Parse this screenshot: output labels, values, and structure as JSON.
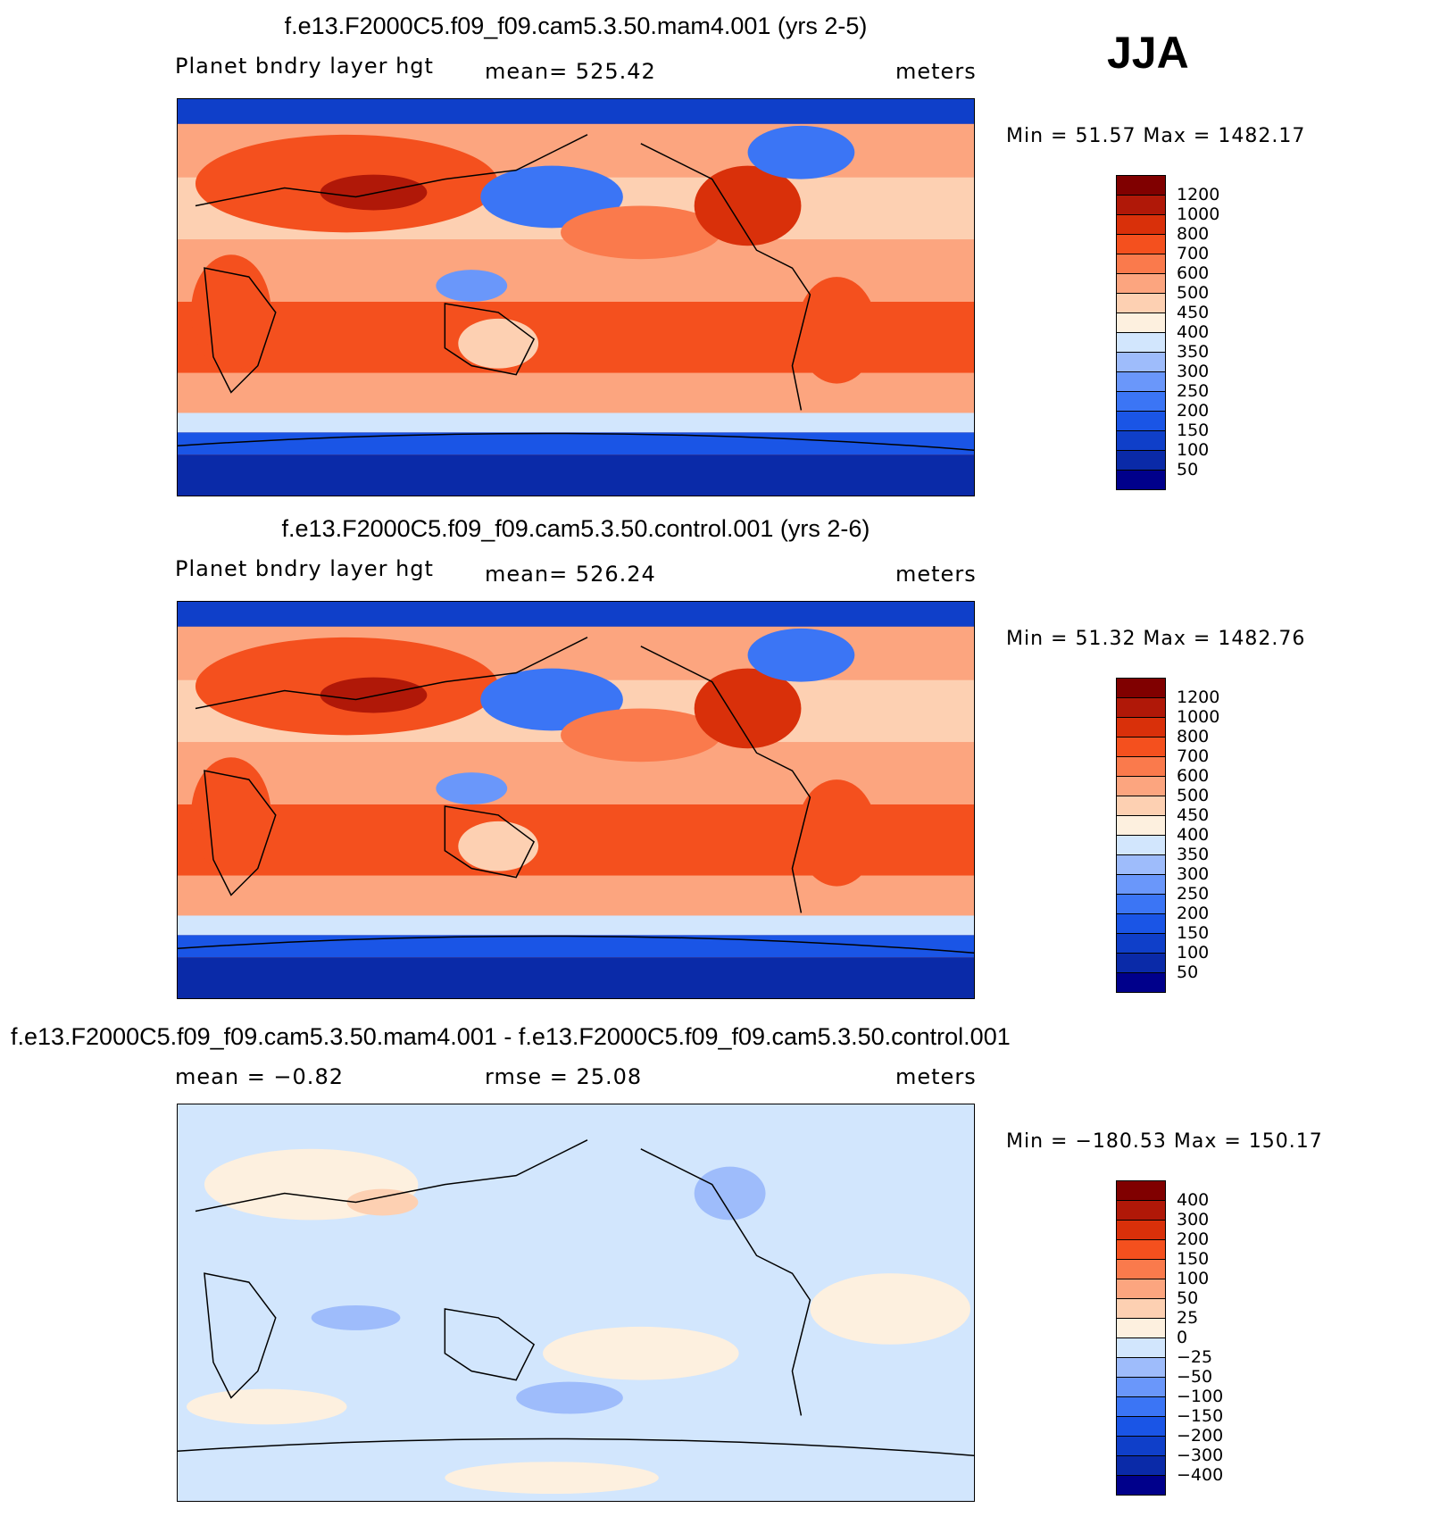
{
  "season": "JJA",
  "colors": {
    "abs": [
      "#00008b",
      "#0a2aa8",
      "#0f3fc9",
      "#1a55e6",
      "#3b75f5",
      "#6a97fa",
      "#9ebcfb",
      "#d2e6fd",
      "#fdf0df",
      "#fdd0b2",
      "#fca57f",
      "#fa7a4c",
      "#f4501e",
      "#d9300a",
      "#b01808",
      "#800000"
    ],
    "diff": [
      "#00008b",
      "#0a2aa8",
      "#0f3fc9",
      "#1a55e6",
      "#3b75f5",
      "#6a97fa",
      "#9ebcfb",
      "#d2e6fd",
      "#fdf0df",
      "#fdd0b2",
      "#fca57f",
      "#fa7a4c",
      "#f4501e",
      "#d9300a",
      "#b01808",
      "#800000"
    ]
  },
  "panels": [
    {
      "title": "f.e13.F2000C5.f09_f09.cam5.3.50.mam4.001 (yrs 2-5)",
      "left_label": "Planet bndry layer hgt",
      "center_label": "mean= 525.42",
      "units": "meters",
      "minmax": "Min =   51.57 Max = 1482.17",
      "levels": [
        "1200",
        "1000",
        "800",
        "700",
        "600",
        "500",
        "450",
        "400",
        "350",
        "300",
        "250",
        "200",
        "150",
        "100",
        "50"
      ],
      "colormap": "abs"
    },
    {
      "title": "f.e13.F2000C5.f09_f09.cam5.3.50.control.001 (yrs 2-6)",
      "left_label": "Planet bndry layer hgt",
      "center_label": "mean= 526.24",
      "units": "meters",
      "minmax": "Min =   51.32 Max = 1482.76",
      "levels": [
        "1200",
        "1000",
        "800",
        "700",
        "600",
        "500",
        "450",
        "400",
        "350",
        "300",
        "250",
        "200",
        "150",
        "100",
        "50"
      ],
      "colormap": "abs"
    },
    {
      "title": "f.e13.F2000C5.f09_f09.cam5.3.50.mam4.001 - f.e13.F2000C5.f09_f09.cam5.3.50.control.001",
      "left_label": "mean =   −0.82",
      "center_label": "rmse =   25.08",
      "units": "meters",
      "minmax": "Min = −180.53 Max =  150.17",
      "levels": [
        "400",
        "300",
        "200",
        "150",
        "100",
        "50",
        "25",
        "0",
        "−25",
        "−50",
        "−100",
        "−150",
        "−200",
        "−300",
        "−400"
      ],
      "colormap": "diff"
    }
  ]
}
